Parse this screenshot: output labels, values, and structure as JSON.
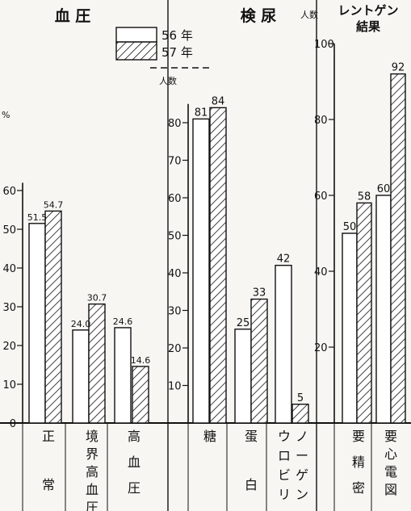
{
  "chart_data": [
    {
      "type": "bar",
      "title": "血 圧",
      "ylabel": "%",
      "ylim": [
        0,
        60
      ],
      "yticks": [
        "0",
        "10",
        "20",
        "30",
        "40",
        "50",
        "60"
      ],
      "categories": [
        "正常",
        "境界高血圧",
        "高血圧"
      ],
      "series": [
        {
          "name": "56 年",
          "values": [
            51.5,
            24.0,
            24.6
          ],
          "labels": [
            "51.5",
            "24.0",
            "24.6"
          ]
        },
        {
          "name": "57 年",
          "values": [
            54.7,
            30.7,
            14.6
          ],
          "labels": [
            "54.7",
            "30.7",
            "14.6"
          ]
        }
      ]
    },
    {
      "type": "bar",
      "title": "検 尿",
      "ylabel": "人数",
      "ylim": [
        0,
        85
      ],
      "yticks": [
        "10",
        "20",
        "30",
        "40",
        "50",
        "60",
        "70",
        "80"
      ],
      "categories": [
        "糖",
        "蛋白",
        "ウロビリノーゲン"
      ],
      "series": [
        {
          "name": "56 年",
          "values": [
            81,
            25,
            42
          ],
          "labels": [
            "81",
            "25",
            "42"
          ]
        },
        {
          "name": "57 年",
          "values": [
            84,
            33,
            5
          ],
          "labels": [
            "84",
            "33",
            "5"
          ]
        }
      ]
    },
    {
      "type": "bar",
      "title": "レントゲン結果",
      "ylabel": "人数",
      "ylim": [
        0,
        100
      ],
      "yticks": [
        "20",
        "40",
        "60",
        "80",
        "100"
      ],
      "categories": [
        "要精密",
        "要心電図"
      ],
      "series": [
        {
          "name": "56 年",
          "values": [
            50,
            60
          ],
          "labels": [
            "50",
            "60"
          ]
        },
        {
          "name": "57 年",
          "values": [
            58,
            92
          ],
          "labels": [
            "58",
            "92"
          ]
        }
      ]
    }
  ],
  "legend": {
    "placement": "top",
    "items": [
      {
        "label": "56 年",
        "style": "open"
      },
      {
        "label": "57 年",
        "style": "hatched"
      }
    ]
  },
  "colors": {
    "ink": "#111111",
    "paper": "#f7f6f2",
    "bar_fill": "#ffffff"
  }
}
